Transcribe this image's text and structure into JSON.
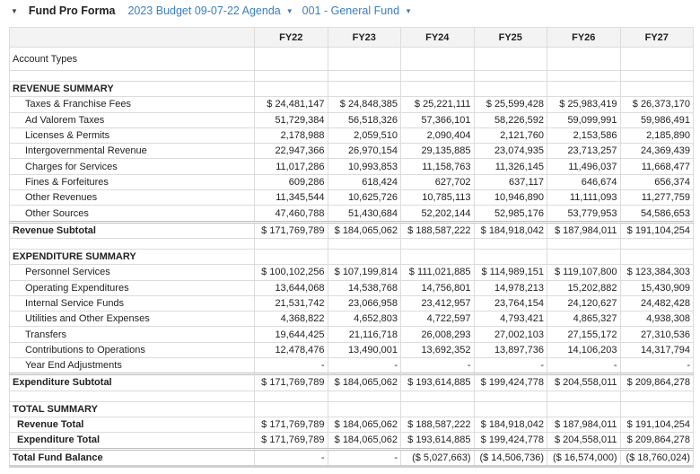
{
  "header": {
    "title": "Fund Pro Forma",
    "budget_select": "2023 Budget 09-07-22 Agenda",
    "fund_select": "001 - General Fund"
  },
  "columns": [
    "FY22",
    "FY23",
    "FY24",
    "FY25",
    "FY26",
    "FY27"
  ],
  "account_types_label": "Account Types",
  "sections": [
    {
      "title": "REVENUE SUMMARY",
      "rows": [
        {
          "label": "Taxes & Franchise Fees",
          "values": [
            "$ 24,481,147",
            "$ 24,848,385",
            "$ 25,221,111",
            "$ 25,599,428",
            "$ 25,983,419",
            "$ 26,373,170"
          ]
        },
        {
          "label": "Ad Valorem Taxes",
          "values": [
            "51,729,384",
            "56,518,326",
            "57,366,101",
            "58,226,592",
            "59,099,991",
            "59,986,491"
          ]
        },
        {
          "label": "Licenses & Permits",
          "values": [
            "2,178,988",
            "2,059,510",
            "2,090,404",
            "2,121,760",
            "2,153,586",
            "2,185,890"
          ]
        },
        {
          "label": "Intergovernmental Revenue",
          "values": [
            "22,947,366",
            "26,970,154",
            "29,135,885",
            "23,074,935",
            "23,713,257",
            "24,369,439"
          ]
        },
        {
          "label": "Charges for Services",
          "values": [
            "11,017,286",
            "10,993,853",
            "11,158,763",
            "11,326,145",
            "11,496,037",
            "11,668,477"
          ]
        },
        {
          "label": "Fines & Forfeitures",
          "values": [
            "609,286",
            "618,424",
            "627,702",
            "637,117",
            "646,674",
            "656,374"
          ]
        },
        {
          "label": "Other Revenues",
          "values": [
            "11,345,544",
            "10,625,726",
            "10,785,113",
            "10,946,890",
            "11,111,093",
            "11,277,759"
          ]
        },
        {
          "label": "Other Sources",
          "values": [
            "47,460,788",
            "51,430,684",
            "52,202,144",
            "52,985,176",
            "53,779,953",
            "54,586,653"
          ]
        }
      ],
      "subtotal": {
        "label": "Revenue Subtotal",
        "values": [
          "$ 171,769,789",
          "$ 184,065,062",
          "$ 188,587,222",
          "$ 184,918,042",
          "$ 187,984,011",
          "$ 191,104,254"
        ]
      }
    },
    {
      "title": "EXPENDITURE SUMMARY",
      "rows": [
        {
          "label": "Personnel Services",
          "values": [
            "$ 100,102,256",
            "$ 107,199,814",
            "$ 111,021,885",
            "$ 114,989,151",
            "$ 119,107,800",
            "$ 123,384,303"
          ]
        },
        {
          "label": "Operating Expenditures",
          "values": [
            "13,644,068",
            "14,538,768",
            "14,756,801",
            "14,978,213",
            "15,202,882",
            "15,430,909"
          ]
        },
        {
          "label": "Internal Service Funds",
          "values": [
            "21,531,742",
            "23,066,958",
            "23,412,957",
            "23,764,154",
            "24,120,627",
            "24,482,428"
          ]
        },
        {
          "label": "Utilities and Other Expenses",
          "values": [
            "4,368,822",
            "4,652,803",
            "4,722,597",
            "4,793,421",
            "4,865,327",
            "4,938,308"
          ]
        },
        {
          "label": "Transfers",
          "values": [
            "19,644,425",
            "21,116,718",
            "26,008,293",
            "27,002,103",
            "27,155,172",
            "27,310,536"
          ]
        },
        {
          "label": "Contributions to Operations",
          "values": [
            "12,478,476",
            "13,490,001",
            "13,692,352",
            "13,897,736",
            "14,106,203",
            "14,317,794"
          ]
        },
        {
          "label": "Year End Adjustments",
          "values": [
            "-",
            "-",
            "-",
            "-",
            "-",
            "-"
          ]
        }
      ],
      "subtotal": {
        "label": "Expenditure Subtotal",
        "values": [
          "$ 171,769,789",
          "$ 184,065,062",
          "$ 193,614,885",
          "$ 199,424,778",
          "$ 204,558,011",
          "$ 209,864,278"
        ]
      }
    }
  ],
  "total_summary": {
    "title": "TOTAL SUMMARY",
    "rows": [
      {
        "label": "Revenue Total",
        "values": [
          "$ 171,769,789",
          "$ 184,065,062",
          "$ 188,587,222",
          "$ 184,918,042",
          "$ 187,984,011",
          "$ 191,104,254"
        ]
      },
      {
        "label": "Expenditure Total",
        "values": [
          "$ 171,769,789",
          "$ 184,065,062",
          "$ 193,614,885",
          "$ 199,424,778",
          "$ 204,558,011",
          "$ 209,864,278"
        ]
      }
    ],
    "balance": {
      "label": "Total Fund Balance",
      "values": [
        "-",
        "-",
        "($ 5,027,663)",
        "($ 14,506,736)",
        "($ 16,574,000)",
        "($ 18,760,024)"
      ]
    }
  }
}
